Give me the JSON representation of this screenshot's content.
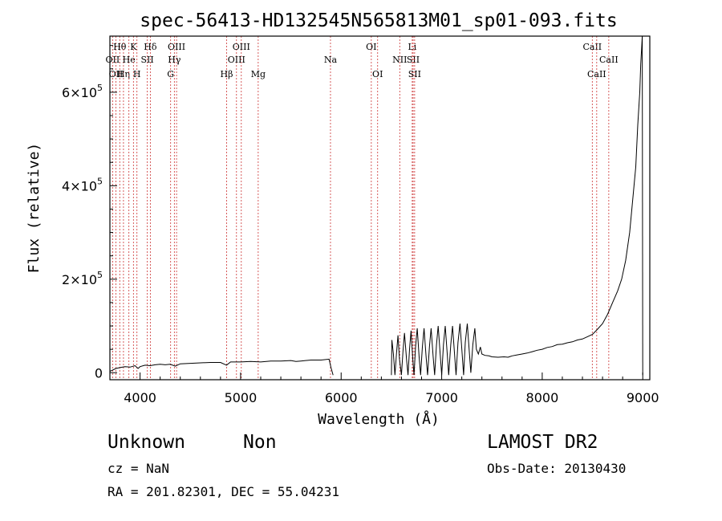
{
  "chart_data": {
    "type": "line",
    "title": "spec-56413-HD132545N565813M01_sp01-093.fits",
    "xlabel": "Wavelength (Å)",
    "ylabel": "Flux (relative)",
    "xlim": [
      3700,
      9070
    ],
    "ylim": [
      -15000,
      720000
    ],
    "x_ticks": [
      4000,
      5000,
      6000,
      7000,
      8000,
      9000
    ],
    "x_tick_labels": [
      "4000",
      "5000",
      "6000",
      "7000",
      "8000",
      "9000"
    ],
    "y_ticks": [
      0,
      200000,
      400000,
      600000
    ],
    "y_tick_labels": [
      {
        "mantissa": "0",
        "exponent": ""
      },
      {
        "mantissa": "2×10",
        "exponent": "5"
      },
      {
        "mantissa": "4×10",
        "exponent": "5"
      },
      {
        "mantissa": "6×10",
        "exponent": "5"
      }
    ],
    "grid": false,
    "legend": "none",
    "line_color": "#000000",
    "marker_color": "#cc3333",
    "series": [
      {
        "segments": [
          [
            [
              3700,
              3000
            ],
            [
              3720,
              5000
            ],
            [
              3760,
              9000
            ],
            [
              3800,
              11000
            ],
            [
              3850,
              13000
            ],
            [
              3900,
              12000
            ],
            [
              3950,
              15000
            ],
            [
              3980,
              9000
            ],
            [
              4000,
              13000
            ],
            [
              4050,
              16000
            ],
            [
              4100,
              15000
            ],
            [
              4150,
              17000
            ],
            [
              4200,
              18000
            ],
            [
              4250,
              17000
            ],
            [
              4300,
              18000
            ],
            [
              4350,
              14000
            ],
            [
              4400,
              19000
            ],
            [
              4500,
              20000
            ],
            [
              4600,
              21000
            ],
            [
              4700,
              22000
            ],
            [
              4800,
              22000
            ],
            [
              4860,
              16000
            ],
            [
              4900,
              23000
            ],
            [
              5000,
              23000
            ],
            [
              5100,
              24000
            ],
            [
              5200,
              23000
            ],
            [
              5300,
              25000
            ],
            [
              5400,
              25000
            ],
            [
              5500,
              26000
            ],
            [
              5550,
              24000
            ],
            [
              5600,
              25000
            ],
            [
              5700,
              27000
            ],
            [
              5800,
              27000
            ],
            [
              5880,
              29000
            ],
            [
              5900,
              10000
            ]
          ],
          [
            [
              5900,
              10000
            ],
            [
              5920,
              -5000
            ]
          ],
          [
            [
              6500,
              -5000
            ],
            [
              6505,
              70000
            ],
            [
              6520,
              40000
            ],
            [
              6535,
              -5000
            ],
            [
              6550,
              40000
            ],
            [
              6565,
              80000
            ],
            [
              6580,
              30000
            ],
            [
              6600,
              -5000
            ],
            [
              6615,
              45000
            ],
            [
              6630,
              85000
            ],
            [
              6650,
              30000
            ],
            [
              6665,
              -5000
            ],
            [
              6680,
              50000
            ],
            [
              6695,
              90000
            ],
            [
              6712,
              30000
            ],
            [
              6725,
              -5000
            ],
            [
              6740,
              55000
            ],
            [
              6757,
              95000
            ],
            [
              6775,
              35000
            ],
            [
              6790,
              -5000
            ],
            [
              6808,
              55000
            ],
            [
              6825,
              95000
            ],
            [
              6845,
              35000
            ],
            [
              6860,
              -5000
            ],
            [
              6878,
              55000
            ],
            [
              6895,
              95000
            ],
            [
              6915,
              35000
            ],
            [
              6930,
              -5000
            ],
            [
              6948,
              60000
            ],
            [
              6965,
              100000
            ],
            [
              6985,
              40000
            ],
            [
              7000,
              -5000
            ],
            [
              7018,
              60000
            ],
            [
              7035,
              100000
            ],
            [
              7055,
              40000
            ],
            [
              7070,
              -5000
            ],
            [
              7090,
              60000
            ],
            [
              7108,
              100000
            ],
            [
              7128,
              40000
            ],
            [
              7143,
              -5000
            ],
            [
              7162,
              65000
            ],
            [
              7182,
              105000
            ],
            [
              7202,
              45000
            ],
            [
              7218,
              -5000
            ],
            [
              7235,
              65000
            ],
            [
              7255,
              105000
            ],
            [
              7275,
              45000
            ],
            [
              7290,
              0
            ],
            [
              7310,
              60000
            ],
            [
              7330,
              95000
            ],
            [
              7345,
              50000
            ],
            [
              7365,
              40000
            ],
            [
              7385,
              55000
            ],
            [
              7400,
              40000
            ],
            [
              7430,
              37000
            ],
            [
              7470,
              36000
            ],
            [
              7500,
              34000
            ],
            [
              7560,
              33000
            ],
            [
              7620,
              34000
            ],
            [
              7660,
              33000
            ],
            [
              7700,
              36000
            ],
            [
              7750,
              38000
            ],
            [
              7800,
              40000
            ],
            [
              7850,
              42000
            ],
            [
              7900,
              45000
            ],
            [
              7950,
              48000
            ],
            [
              8000,
              50000
            ],
            [
              8050,
              54000
            ],
            [
              8100,
              56000
            ],
            [
              8150,
              60000
            ],
            [
              8200,
              61000
            ],
            [
              8250,
              64000
            ],
            [
              8300,
              66000
            ],
            [
              8350,
              70000
            ],
            [
              8400,
              72000
            ],
            [
              8450,
              77000
            ],
            [
              8500,
              82000
            ],
            [
              8550,
              93000
            ],
            [
              8600,
              105000
            ],
            [
              8650,
              125000
            ],
            [
              8700,
              150000
            ],
            [
              8750,
              175000
            ],
            [
              8790,
              200000
            ],
            [
              8830,
              240000
            ],
            [
              8870,
              300000
            ],
            [
              8900,
              370000
            ],
            [
              8930,
              440000
            ],
            [
              8950,
              530000
            ],
            [
              8970,
              600000
            ],
            [
              8980,
              660000
            ],
            [
              8990,
              700000
            ],
            [
              8995,
              720000
            ]
          ],
          [
            [
              8995,
              720000
            ],
            [
              9000,
              -5000
            ]
          ]
        ]
      }
    ],
    "line_markers": [
      {
        "x": 3727,
        "labels": [
          {
            "text": "OII",
            "row": 2
          }
        ]
      },
      {
        "x": 3760,
        "labels": [
          {
            "text": "OII",
            "row": 3
          }
        ]
      },
      {
        "x": 3798,
        "labels": [
          {
            "text": "Hθ",
            "row": 1
          }
        ]
      },
      {
        "x": 3835,
        "labels": [
          {
            "text": "Hη",
            "row": 3
          }
        ]
      },
      {
        "x": 3889,
        "labels": [
          {
            "text": "He",
            "row": 2
          }
        ]
      },
      {
        "x": 3934,
        "labels": [
          {
            "text": "K",
            "row": 1
          }
        ]
      },
      {
        "x": 3969,
        "labels": [
          {
            "text": "H",
            "row": 3
          }
        ]
      },
      {
        "x": 4072,
        "labels": [
          {
            "text": "SII",
            "row": 2
          }
        ]
      },
      {
        "x": 4102,
        "labels": [
          {
            "text": "Hδ",
            "row": 1
          }
        ]
      },
      {
        "x": 4304,
        "labels": [
          {
            "text": "G",
            "row": 3
          }
        ]
      },
      {
        "x": 4341,
        "labels": [
          {
            "text": "Hγ",
            "row": 2
          }
        ]
      },
      {
        "x": 4363,
        "labels": [
          {
            "text": "OIII",
            "row": 1
          }
        ]
      },
      {
        "x": 4861,
        "labels": [
          {
            "text": "Hβ",
            "row": 3
          }
        ]
      },
      {
        "x": 4959,
        "labels": [
          {
            "text": "OIII",
            "row": 2
          }
        ]
      },
      {
        "x": 5007,
        "labels": [
          {
            "text": "OIII",
            "row": 1
          }
        ]
      },
      {
        "x": 5175,
        "labels": [
          {
            "text": "Mg",
            "row": 3
          }
        ]
      },
      {
        "x": 5894,
        "labels": [
          {
            "text": "Na",
            "row": 2
          }
        ]
      },
      {
        "x": 6300,
        "labels": [
          {
            "text": "OI",
            "row": 1
          }
        ]
      },
      {
        "x": 6363,
        "labels": [
          {
            "text": "OI",
            "row": 3
          }
        ]
      },
      {
        "x": 6583,
        "labels": [
          {
            "text": "NII",
            "row": 2
          }
        ]
      },
      {
        "x": 6707,
        "labels": [
          {
            "text": "Li",
            "row": 1
          }
        ]
      },
      {
        "x": 6716,
        "labels": [
          {
            "text": "SII",
            "row": 2
          }
        ]
      },
      {
        "x": 6731,
        "labels": [
          {
            "text": "SII",
            "row": 3
          }
        ]
      },
      {
        "x": 8498,
        "labels": [
          {
            "text": "CaII",
            "row": 1
          }
        ]
      },
      {
        "x": 8542,
        "labels": [
          {
            "text": "CaII",
            "row": 3
          }
        ]
      },
      {
        "x": 8662,
        "labels": [
          {
            "text": "CaII",
            "row": 2
          }
        ]
      }
    ]
  },
  "info": {
    "class": "Unknown",
    "subclass": "Non",
    "survey": "LAMOST DR2",
    "cz": "cz = NaN",
    "obs_date": "Obs-Date: 20130430",
    "coords": "RA = 201.82301, DEC =  55.04231"
  }
}
